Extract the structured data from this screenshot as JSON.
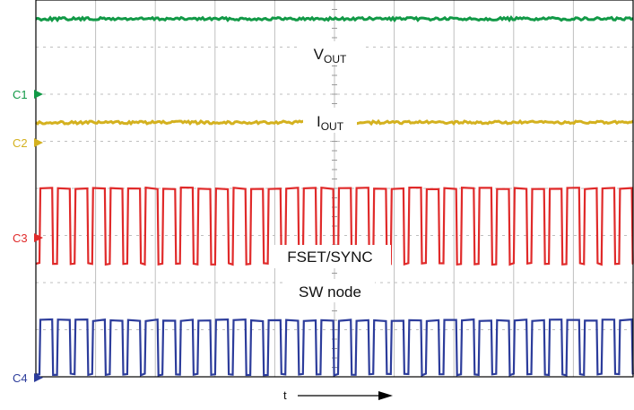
{
  "chart_data": {
    "type": "line",
    "title": "",
    "xlabel": "t",
    "ylabel": "",
    "grid": true,
    "x_divisions": 10,
    "y_divisions": 8,
    "colors": {
      "C1": "#119946",
      "C2": "#d4b11f",
      "C3": "#e02a2a",
      "C4": "#2c3c9b",
      "grid": "#bfbfbf",
      "frame": "#000000"
    },
    "channels": [
      {
        "name": "C1",
        "color": "#119946"
      },
      {
        "name": "C2",
        "color": "#d4b11f"
      },
      {
        "name": "C3",
        "color": "#e02a2a"
      },
      {
        "name": "C4",
        "color": "#2c3c9b"
      }
    ],
    "traces": [
      {
        "channel": "C1",
        "name_main": "V",
        "name_sub": "OUT",
        "waveform": "dc",
        "level_div": 7.6
      },
      {
        "channel": "C2",
        "name_main": "I",
        "name_sub": "OUT",
        "waveform": "dc",
        "level_div": 5.4
      },
      {
        "channel": "C3",
        "name": "FSET/SYNC",
        "waveform": "square",
        "cycles": 34,
        "duty": 0.5,
        "low_div": 2.4,
        "high_div": 4.0
      },
      {
        "channel": "C4",
        "name": "SW node",
        "waveform": "square",
        "cycles": 34,
        "duty": 0.5,
        "low_div": 0.05,
        "high_div": 1.2
      }
    ]
  }
}
